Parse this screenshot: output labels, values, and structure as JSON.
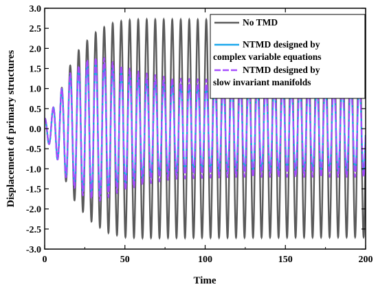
{
  "chart_data": {
    "type": "line",
    "title": "",
    "xlabel": "Time",
    "ylabel": "Displacement of primary structures",
    "xlim": [
      0,
      200
    ],
    "ylim": [
      -3.0,
      3.0
    ],
    "xticks": [
      0,
      50,
      100,
      150,
      200
    ],
    "yticks": [
      -3.0,
      -2.5,
      -2.0,
      -1.5,
      -1.0,
      -0.5,
      0.0,
      0.5,
      1.0,
      1.5,
      2.0,
      2.5,
      3.0
    ],
    "grid": false,
    "legend_position": "top-right",
    "signal": {
      "period": 5.3,
      "initial_value": 0.25
    },
    "series": [
      {
        "name": "No TMD",
        "color": "#5a5a5a",
        "style": "solid",
        "envelope": {
          "t": [
            0,
            5,
            10,
            15,
            20,
            30,
            40,
            50,
            60,
            200
          ],
          "amplitude": [
            0.25,
            0.5,
            0.95,
            1.5,
            1.9,
            2.35,
            2.6,
            2.7,
            2.72,
            2.7
          ]
        }
      },
      {
        "name": "NTMD designed by complex variable equations",
        "color": "#1aa7ec",
        "style": "solid",
        "envelope": {
          "t": [
            0,
            5,
            10,
            15,
            25,
            35,
            45,
            60,
            80,
            120,
            200
          ],
          "amplitude": [
            0.25,
            0.5,
            0.95,
            1.3,
            1.6,
            1.65,
            1.45,
            1.25,
            1.1,
            1.05,
            1.05
          ]
        }
      },
      {
        "name": "NTMD designed by slow invariant manifolds",
        "color": "#a64dff",
        "style": "dashed",
        "envelope": {
          "t": [
            0,
            5,
            10,
            15,
            25,
            35,
            45,
            60,
            80,
            120,
            200
          ],
          "amplitude": [
            0.25,
            0.5,
            0.95,
            1.35,
            1.7,
            1.8,
            1.6,
            1.4,
            1.25,
            1.2,
            1.2
          ]
        }
      }
    ],
    "legend_labels": [
      [
        "No TMD"
      ],
      [
        "NTMD designed by",
        "complex variable equations"
      ],
      [
        "NTMD designed by",
        "slow invariant manifolds"
      ]
    ]
  }
}
